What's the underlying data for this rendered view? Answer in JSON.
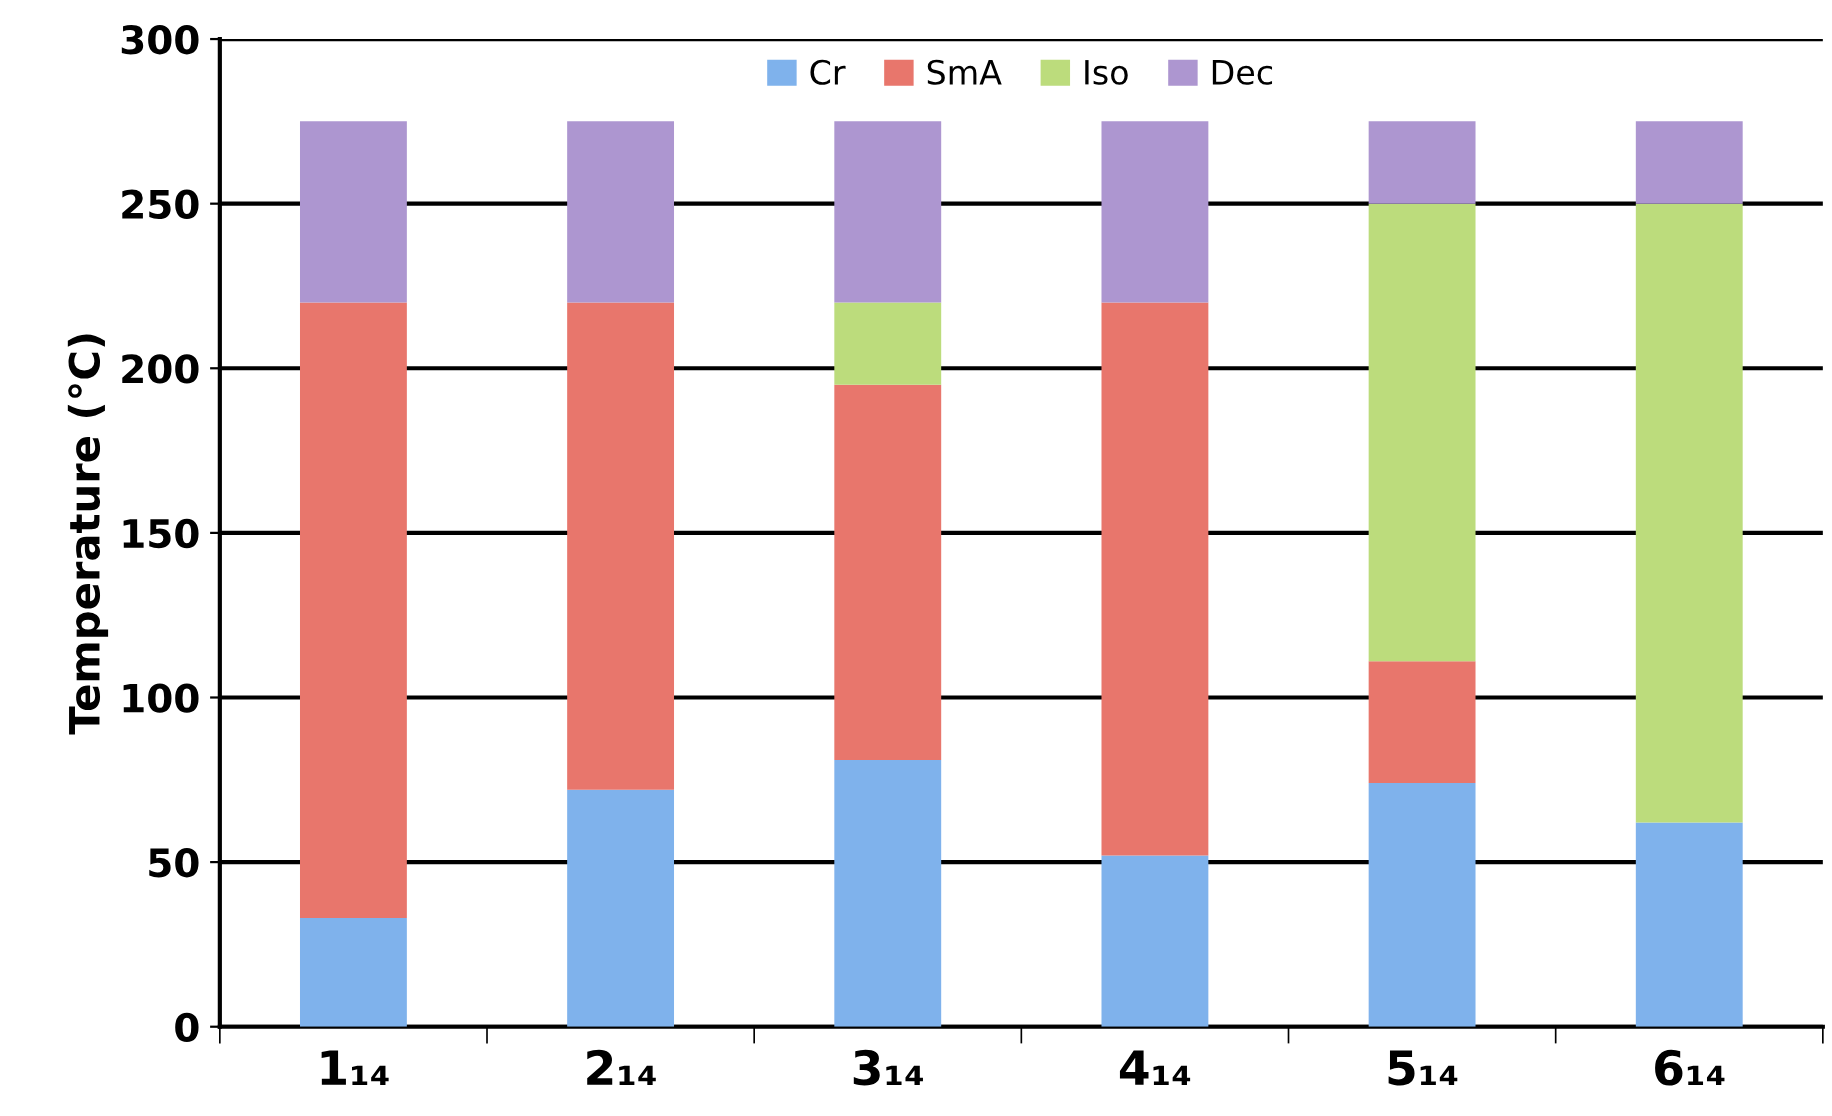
{
  "chart_data": {
    "type": "bar",
    "stacked": true,
    "ylabel": "Temperature (°C)",
    "categories": [
      "1₁₄",
      "2₁₄",
      "3₁₄",
      "4₁₄",
      "5₁₄",
      "6₁₄"
    ],
    "series": [
      {
        "name": "Cr",
        "color": "#7fb2ec",
        "values": [
          33,
          72,
          81,
          52,
          74,
          62
        ]
      },
      {
        "name": "SmA",
        "color": "#e8766c",
        "values": [
          187,
          148,
          114,
          168,
          37,
          null
        ]
      },
      {
        "name": "Iso",
        "color": "#bcdc7c",
        "values": [
          null,
          null,
          25,
          null,
          139,
          188
        ]
      },
      {
        "name": "Dec",
        "color": "#ad96d0",
        "values": [
          55,
          55,
          55,
          55,
          25,
          25
        ]
      }
    ],
    "ylim": [
      0,
      300
    ],
    "yticks": [
      0,
      50,
      100,
      150,
      200,
      250,
      300
    ],
    "grid": "y",
    "legend": "top"
  }
}
